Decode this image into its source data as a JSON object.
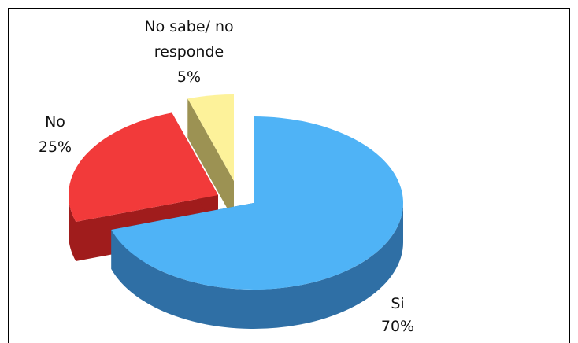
{
  "chart_data": {
    "type": "pie",
    "style": "3d-exploded",
    "slices": [
      {
        "label": "Si",
        "percent_label": "70%",
        "value": 70,
        "color": "#4fb3f6",
        "side_color": "#2f6fa5"
      },
      {
        "label": "No",
        "percent_label": "25%",
        "value": 25,
        "color": "#f23a3a",
        "side_color": "#a01c1c"
      },
      {
        "label": "No sabe/ no responde",
        "label_lines": [
          "No sabe/ no",
          "responde"
        ],
        "percent_label": "5%",
        "value": 5,
        "color": "#fdf29a",
        "side_color": "#9c9253"
      }
    ],
    "legend": "none"
  }
}
